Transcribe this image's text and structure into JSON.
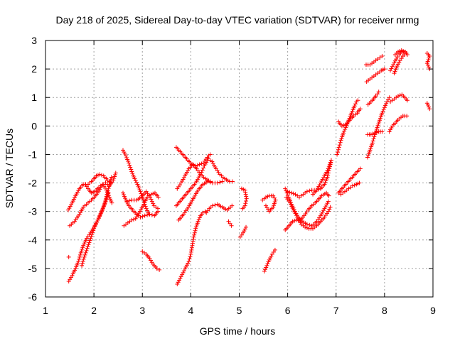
{
  "chart_data": {
    "type": "scatter",
    "title": "Day 218 of 2025, Sidereal Day-to-day VTEC variation (SDTVAR) for receiver nrmg",
    "xlabel": "GPS time / hours",
    "ylabel": "SDTVAR / TECUs",
    "xlim": [
      1,
      9
    ],
    "ylim": [
      -6,
      3
    ],
    "x_ticks": [
      "1",
      "2",
      "3",
      "4",
      "5",
      "6",
      "7",
      "8",
      "9"
    ],
    "y_ticks": [
      "-6",
      "-5",
      "-4",
      "-3",
      "-2",
      "-1",
      "0",
      "1",
      "2",
      "3"
    ],
    "grid": true,
    "marker": "+",
    "color": "#ff0000",
    "tracks": [
      [
        [
          1.47,
          -2.95
        ],
        [
          1.55,
          -2.7
        ],
        [
          1.62,
          -2.45
        ],
        [
          1.7,
          -2.2
        ],
        [
          1.78,
          -2.05
        ],
        [
          1.88,
          -2.05
        ],
        [
          1.98,
          -1.9
        ],
        [
          2.05,
          -1.75
        ],
        [
          2.12,
          -1.7
        ],
        [
          2.2,
          -1.75
        ],
        [
          2.28,
          -1.9
        ],
        [
          2.35,
          -2.0
        ]
      ],
      [
        [
          1.5,
          -3.5
        ],
        [
          1.6,
          -3.35
        ],
        [
          1.7,
          -3.1
        ],
        [
          1.78,
          -2.85
        ],
        [
          1.88,
          -2.7
        ],
        [
          1.98,
          -2.55
        ],
        [
          2.08,
          -2.35
        ],
        [
          2.16,
          -2.1
        ],
        [
          2.24,
          -2.0
        ],
        [
          2.32,
          -2.1
        ],
        [
          2.4,
          -1.9
        ],
        [
          2.45,
          -1.65
        ]
      ],
      [
        [
          1.48,
          -5.45
        ],
        [
          1.55,
          -5.25
        ],
        [
          1.62,
          -5.0
        ],
        [
          1.68,
          -4.75
        ],
        [
          1.73,
          -4.45
        ],
        [
          1.78,
          -4.2
        ],
        [
          1.85,
          -3.95
        ],
        [
          1.93,
          -3.75
        ],
        [
          2.0,
          -3.55
        ],
        [
          2.08,
          -3.3
        ],
        [
          2.15,
          -3.05
        ],
        [
          2.22,
          -2.75
        ],
        [
          2.27,
          -2.4
        ],
        [
          2.32,
          -2.05
        ],
        [
          2.36,
          -1.8
        ]
      ],
      [
        [
          1.75,
          -4.9
        ],
        [
          1.8,
          -4.6
        ],
        [
          1.86,
          -4.3
        ],
        [
          1.93,
          -3.95
        ],
        [
          2.0,
          -3.6
        ],
        [
          2.08,
          -3.3
        ],
        [
          2.16,
          -3.0
        ],
        [
          2.24,
          -2.65
        ],
        [
          2.3,
          -2.35
        ]
      ],
      [
        [
          1.82,
          -2.05
        ],
        [
          1.88,
          -2.2
        ],
        [
          1.95,
          -2.35
        ],
        [
          2.02,
          -2.3
        ],
        [
          2.1,
          -2.15
        ],
        [
          2.18,
          -2.05
        ],
        [
          2.26,
          -2.25
        ],
        [
          2.32,
          -2.5
        ],
        [
          2.37,
          -2.7
        ]
      ],
      [
        [
          2.6,
          -0.85
        ],
        [
          2.66,
          -1.05
        ],
        [
          2.72,
          -1.3
        ],
        [
          2.78,
          -1.6
        ],
        [
          2.84,
          -1.85
        ],
        [
          2.9,
          -2.05
        ],
        [
          2.96,
          -2.3
        ],
        [
          3.02,
          -2.6
        ],
        [
          3.08,
          -2.9
        ],
        [
          3.14,
          -3.1
        ]
      ],
      [
        [
          2.6,
          -2.35
        ],
        [
          2.66,
          -2.6
        ],
        [
          2.72,
          -2.8
        ],
        [
          2.8,
          -2.95
        ],
        [
          2.88,
          -3.1
        ],
        [
          2.96,
          -3.2
        ],
        [
          3.05,
          -3.15
        ],
        [
          3.15,
          -3.1
        ],
        [
          3.25,
          -3.15
        ],
        [
          3.32,
          -3.0
        ]
      ],
      [
        [
          2.62,
          -3.5
        ],
        [
          2.7,
          -3.4
        ],
        [
          2.78,
          -3.3
        ],
        [
          2.86,
          -3.25
        ],
        [
          2.95,
          -3.0
        ],
        [
          3.03,
          -2.75
        ],
        [
          3.1,
          -2.5
        ],
        [
          3.18,
          -2.4
        ],
        [
          3.26,
          -2.35
        ],
        [
          3.33,
          -2.5
        ]
      ],
      [
        [
          2.68,
          -2.65
        ],
        [
          2.78,
          -2.6
        ],
        [
          2.88,
          -2.6
        ],
        [
          2.98,
          -2.5
        ],
        [
          3.08,
          -2.3
        ],
        [
          3.16,
          -2.5
        ],
        [
          3.24,
          -2.8
        ],
        [
          3.32,
          -2.9
        ]
      ],
      [
        [
          3.0,
          -4.4
        ],
        [
          3.08,
          -4.5
        ],
        [
          3.15,
          -4.65
        ],
        [
          3.22,
          -4.85
        ],
        [
          3.3,
          -5.0
        ],
        [
          3.35,
          -5.05
        ]
      ],
      [
        [
          3.7,
          -0.75
        ],
        [
          3.78,
          -0.9
        ],
        [
          3.86,
          -1.05
        ],
        [
          3.94,
          -1.2
        ],
        [
          4.02,
          -1.35
        ],
        [
          4.1,
          -1.4
        ],
        [
          4.18,
          -1.35
        ],
        [
          4.26,
          -1.3
        ],
        [
          4.34,
          -1.1
        ],
        [
          4.4,
          -1.0
        ]
      ],
      [
        [
          3.72,
          -2.2
        ],
        [
          3.8,
          -2.0
        ],
        [
          3.88,
          -1.75
        ],
        [
          3.96,
          -1.5
        ],
        [
          4.04,
          -1.35
        ],
        [
          4.12,
          -1.5
        ],
        [
          4.2,
          -1.7
        ],
        [
          4.3,
          -1.85
        ],
        [
          4.4,
          -1.95
        ]
      ],
      [
        [
          3.7,
          -2.8
        ],
        [
          3.8,
          -2.6
        ],
        [
          3.9,
          -2.4
        ],
        [
          4.0,
          -2.2
        ],
        [
          4.1,
          -2.0
        ],
        [
          4.2,
          -1.7
        ],
        [
          4.28,
          -1.4
        ],
        [
          4.36,
          -1.15
        ],
        [
          4.44,
          -1.25
        ],
        [
          4.52,
          -1.5
        ],
        [
          4.6,
          -1.7
        ],
        [
          4.7,
          -1.85
        ],
        [
          4.8,
          -1.95
        ],
        [
          4.86,
          -1.95
        ]
      ],
      [
        [
          3.75,
          -3.3
        ],
        [
          3.85,
          -3.1
        ],
        [
          3.95,
          -2.85
        ],
        [
          4.05,
          -2.55
        ],
        [
          4.15,
          -2.25
        ],
        [
          4.25,
          -2.05
        ],
        [
          4.35,
          -1.95
        ],
        [
          4.45,
          -2.0
        ],
        [
          4.55,
          -2.0
        ],
        [
          4.65,
          -1.95
        ]
      ],
      [
        [
          3.72,
          -5.55
        ],
        [
          3.78,
          -5.35
        ],
        [
          3.84,
          -5.15
        ],
        [
          3.9,
          -4.95
        ],
        [
          3.96,
          -4.75
        ],
        [
          4.0,
          -4.5
        ],
        [
          4.03,
          -4.2
        ],
        [
          4.06,
          -3.9
        ],
        [
          4.1,
          -3.6
        ],
        [
          4.15,
          -3.35
        ],
        [
          4.2,
          -3.15
        ],
        [
          4.25,
          -3.05
        ],
        [
          4.3,
          -3.0
        ]
      ],
      [
        [
          4.32,
          -3.05
        ],
        [
          4.38,
          -2.9
        ],
        [
          4.45,
          -2.8
        ],
        [
          4.55,
          -2.75
        ],
        [
          4.65,
          -2.85
        ],
        [
          4.75,
          -2.95
        ],
        [
          4.85,
          -2.8
        ]
      ],
      [
        [
          4.78,
          -3.35
        ],
        [
          4.84,
          -3.5
        ]
      ],
      [
        [
          5.02,
          -3.9
        ],
        [
          5.08,
          -3.75
        ],
        [
          5.14,
          -3.55
        ]
      ],
      [
        [
          5.05,
          -2.2
        ],
        [
          5.12,
          -2.25
        ],
        [
          5.15,
          -2.55
        ],
        [
          5.12,
          -2.8
        ],
        [
          5.07,
          -2.9
        ]
      ],
      [
        [
          5.48,
          -2.6
        ],
        [
          5.55,
          -2.5
        ],
        [
          5.62,
          -2.45
        ],
        [
          5.7,
          -2.45
        ],
        [
          5.75,
          -2.6
        ],
        [
          5.7,
          -2.85
        ],
        [
          5.62,
          -3.0
        ],
        [
          5.55,
          -2.8
        ]
      ],
      [
        [
          5.52,
          -5.1
        ],
        [
          5.57,
          -4.9
        ],
        [
          5.62,
          -4.7
        ],
        [
          5.68,
          -4.5
        ],
        [
          5.74,
          -4.35
        ]
      ],
      [
        [
          5.95,
          -3.65
        ],
        [
          6.03,
          -3.5
        ],
        [
          6.1,
          -3.35
        ],
        [
          6.18,
          -3.3
        ],
        [
          6.26,
          -3.3
        ],
        [
          6.34,
          -3.15
        ],
        [
          6.42,
          -2.95
        ],
        [
          6.5,
          -2.8
        ],
        [
          6.6,
          -2.65
        ],
        [
          6.7,
          -2.45
        ],
        [
          6.8,
          -2.35
        ],
        [
          6.85,
          -2.45
        ]
      ],
      [
        [
          5.95,
          -2.2
        ],
        [
          6.02,
          -2.5
        ],
        [
          6.08,
          -2.75
        ],
        [
          6.15,
          -3.0
        ],
        [
          6.22,
          -3.2
        ],
        [
          6.3,
          -3.35
        ],
        [
          6.4,
          -3.45
        ],
        [
          6.5,
          -3.5
        ],
        [
          6.6,
          -3.35
        ],
        [
          6.68,
          -3.15
        ],
        [
          6.76,
          -2.9
        ],
        [
          6.84,
          -2.65
        ]
      ],
      [
        [
          5.97,
          -2.5
        ],
        [
          6.05,
          -2.7
        ],
        [
          6.12,
          -2.95
        ],
        [
          6.2,
          -3.2
        ],
        [
          6.28,
          -3.45
        ],
        [
          6.36,
          -3.55
        ],
        [
          6.44,
          -3.6
        ],
        [
          6.52,
          -3.6
        ],
        [
          6.6,
          -3.5
        ],
        [
          6.68,
          -3.35
        ],
        [
          6.76,
          -3.2
        ],
        [
          6.84,
          -3.0
        ],
        [
          6.88,
          -2.85
        ]
      ],
      [
        [
          6.0,
          -2.3
        ],
        [
          6.08,
          -2.35
        ],
        [
          6.16,
          -2.4
        ],
        [
          6.24,
          -2.5
        ],
        [
          6.32,
          -2.4
        ],
        [
          6.4,
          -2.3
        ],
        [
          6.5,
          -2.25
        ],
        [
          6.6,
          -2.25
        ],
        [
          6.68,
          -2.2
        ],
        [
          6.76,
          -2.05
        ],
        [
          6.82,
          -1.8
        ],
        [
          6.86,
          -1.5
        ],
        [
          6.9,
          -1.2
        ]
      ],
      [
        [
          6.52,
          -2.4
        ],
        [
          6.6,
          -2.25
        ],
        [
          6.68,
          -2.0
        ],
        [
          6.76,
          -1.75
        ],
        [
          6.84,
          -1.5
        ],
        [
          6.88,
          -1.3
        ]
      ],
      [
        [
          7.02,
          -1.0
        ],
        [
          7.06,
          -0.75
        ],
        [
          7.1,
          -0.5
        ],
        [
          7.15,
          -0.25
        ],
        [
          7.2,
          -0.05
        ],
        [
          7.26,
          0.2
        ],
        [
          7.32,
          0.45
        ],
        [
          7.38,
          0.7
        ],
        [
          7.42,
          0.85
        ],
        [
          7.45,
          0.9
        ]
      ],
      [
        [
          7.05,
          0.15
        ],
        [
          7.12,
          0.0
        ],
        [
          7.2,
          0.05
        ],
        [
          7.28,
          0.2
        ],
        [
          7.36,
          0.35
        ],
        [
          7.44,
          0.45
        ]
      ],
      [
        [
          7.05,
          -2.35
        ],
        [
          7.12,
          -2.2
        ],
        [
          7.2,
          -2.05
        ],
        [
          7.28,
          -1.9
        ],
        [
          7.36,
          -1.75
        ],
        [
          7.44,
          -1.6
        ],
        [
          7.5,
          -1.5
        ]
      ],
      [
        [
          7.1,
          -2.4
        ],
        [
          7.18,
          -2.3
        ],
        [
          7.26,
          -2.2
        ],
        [
          7.34,
          -2.1
        ],
        [
          7.42,
          -2.05
        ],
        [
          7.48,
          -2.0
        ]
      ],
      [
        [
          7.65,
          -1.1
        ],
        [
          7.7,
          -0.85
        ],
        [
          7.75,
          -0.6
        ],
        [
          7.8,
          -0.3
        ],
        [
          7.85,
          -0.05
        ],
        [
          7.9,
          0.2
        ],
        [
          7.95,
          0.45
        ],
        [
          8.0,
          0.65
        ],
        [
          8.05,
          0.85
        ],
        [
          8.1,
          1.0
        ]
      ],
      [
        [
          7.65,
          -0.3
        ],
        [
          7.72,
          -0.3
        ],
        [
          7.8,
          -0.25
        ],
        [
          7.88,
          -0.2
        ],
        [
          7.95,
          -0.2
        ]
      ],
      [
        [
          7.62,
          2.15
        ],
        [
          7.7,
          2.15
        ],
        [
          7.78,
          2.25
        ],
        [
          7.86,
          2.35
        ],
        [
          7.95,
          2.45
        ]
      ],
      [
        [
          7.63,
          1.55
        ],
        [
          7.7,
          1.65
        ],
        [
          7.78,
          1.75
        ],
        [
          7.86,
          1.85
        ],
        [
          7.94,
          1.95
        ],
        [
          8.0,
          2.0
        ]
      ],
      [
        [
          7.66,
          0.75
        ],
        [
          7.75,
          0.9
        ],
        [
          7.82,
          1.05
        ],
        [
          7.88,
          1.2
        ]
      ],
      [
        [
          8.12,
          0.85
        ],
        [
          8.2,
          0.95
        ],
        [
          8.28,
          1.05
        ],
        [
          8.36,
          1.1
        ],
        [
          8.42,
          1.0
        ],
        [
          8.47,
          0.9
        ]
      ],
      [
        [
          8.1,
          -0.2
        ],
        [
          8.16,
          0.0
        ],
        [
          8.22,
          0.1
        ],
        [
          8.3,
          0.25
        ],
        [
          8.38,
          0.35
        ],
        [
          8.46,
          0.35
        ]
      ],
      [
        [
          8.12,
          1.95
        ],
        [
          8.18,
          2.15
        ],
        [
          8.24,
          2.35
        ],
        [
          8.3,
          2.5
        ],
        [
          8.36,
          2.6
        ],
        [
          8.43,
          2.6
        ],
        [
          8.47,
          2.5
        ]
      ],
      [
        [
          8.2,
          1.85
        ],
        [
          8.26,
          2.1
        ],
        [
          8.32,
          2.3
        ],
        [
          8.38,
          2.45
        ],
        [
          8.45,
          2.55
        ]
      ],
      [
        [
          8.22,
          2.5
        ],
        [
          8.28,
          2.6
        ],
        [
          8.35,
          2.65
        ],
        [
          8.42,
          2.6
        ]
      ],
      [
        [
          8.88,
          2.55
        ],
        [
          8.93,
          2.45
        ],
        [
          8.88,
          2.2
        ],
        [
          8.93,
          2.0
        ]
      ],
      [
        [
          8.88,
          0.8
        ],
        [
          8.93,
          0.6
        ]
      ],
      [
        [
          1.48,
          -4.6
        ]
      ],
      [
        [
          7.45,
          0.5
        ],
        [
          7.5,
          0.6
        ]
      ]
    ]
  }
}
